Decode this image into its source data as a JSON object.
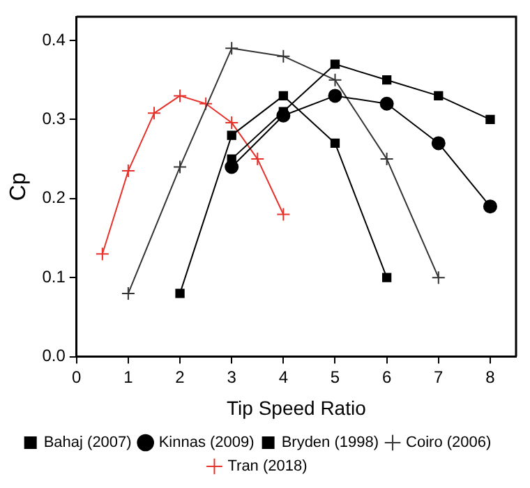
{
  "chart_data": {
    "type": "line",
    "xlabel": "Tip Speed Ratio",
    "ylabel": "Cp",
    "xlim": [
      0,
      8.5
    ],
    "xticks": [
      0,
      1,
      2,
      3,
      4,
      5,
      6,
      7,
      8
    ],
    "ylim": [
      0,
      0.43
    ],
    "yticks": [
      {
        "value": 0,
        "label": "0.0"
      },
      {
        "value": 0.1,
        "label": "0.1"
      },
      {
        "value": 0.2,
        "label": "0.2"
      },
      {
        "value": 0.3,
        "label": "0.3"
      },
      {
        "value": 0.4,
        "label": "0.4"
      }
    ],
    "grid": false,
    "legend": "bottom",
    "line_style": "solid",
    "series": [
      {
        "name": "Bahaj (2007)",
        "color": "#000000",
        "marker": "square",
        "x": [
          3,
          4,
          5,
          6,
          7,
          8
        ],
        "values": [
          0.25,
          0.31,
          0.37,
          0.35,
          0.33,
          0.3
        ]
      },
      {
        "name": "Kinnas (2009)",
        "color": "#000000",
        "marker": "circle",
        "x": [
          3,
          4,
          5,
          6,
          7,
          8
        ],
        "values": [
          0.24,
          0.305,
          0.33,
          0.32,
          0.27,
          0.19
        ]
      },
      {
        "name": "Bryden (1998)",
        "color": "#000000",
        "marker": "square",
        "x": [
          2,
          3,
          4,
          5,
          6
        ],
        "values": [
          0.08,
          0.28,
          0.33,
          0.27,
          0.1
        ]
      },
      {
        "name": "Coiro (2006)",
        "color": "#333333",
        "marker": "cross",
        "x": [
          1,
          2,
          3,
          4,
          5,
          6,
          7
        ],
        "values": [
          0.08,
          0.24,
          0.39,
          0.38,
          0.35,
          0.25,
          0.1
        ]
      },
      {
        "name": "Tran (2018)",
        "color": "#e8302a",
        "marker": "cross",
        "x": [
          0.5,
          1,
          1.5,
          2,
          2.5,
          3,
          3.5,
          4
        ],
        "values": [
          0.13,
          0.235,
          0.308,
          0.33,
          0.32,
          0.296,
          0.25,
          0.18
        ]
      }
    ]
  }
}
